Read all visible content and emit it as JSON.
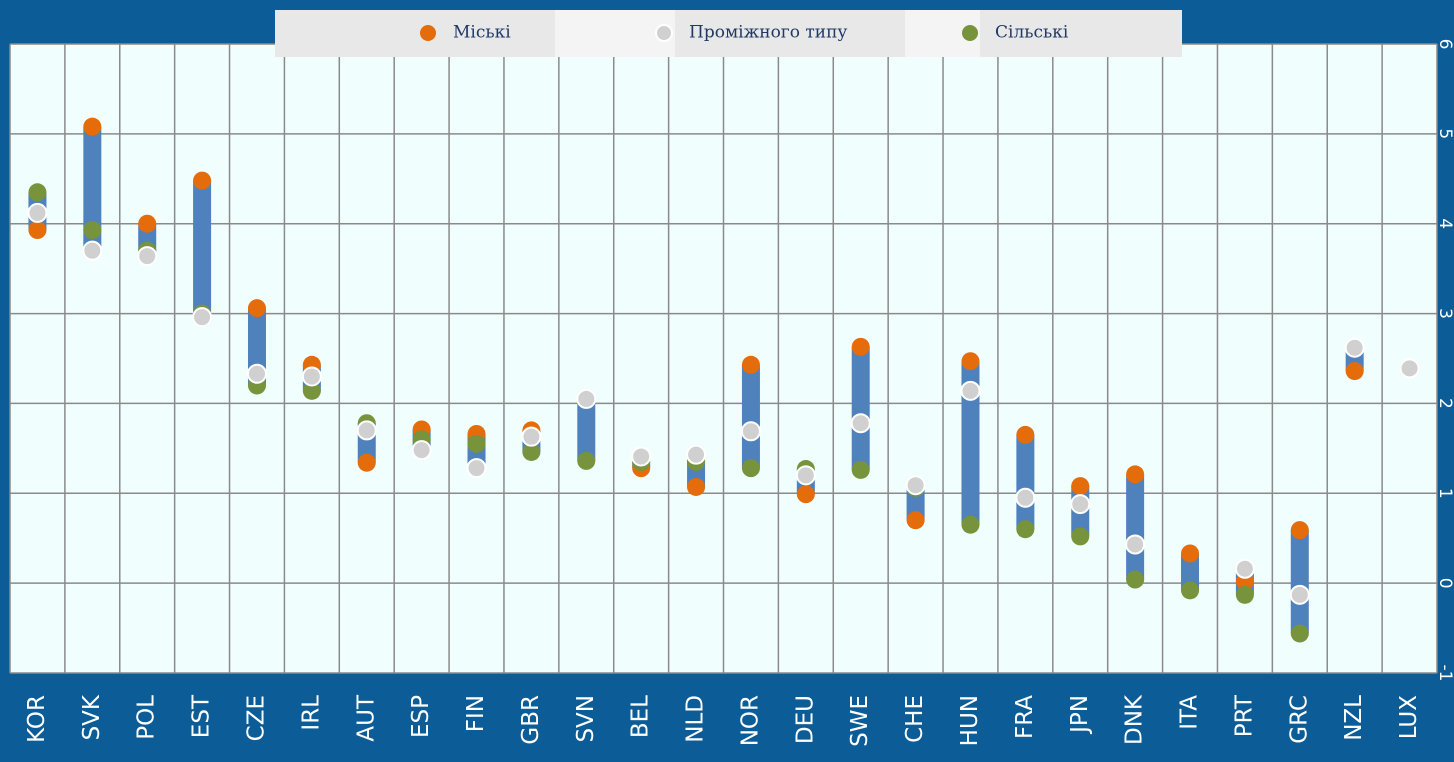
{
  "chart_data": {
    "type": "dot-range",
    "categories": [
      "KOR",
      "SVK",
      "POL",
      "EST",
      "CZE",
      "IRL",
      "AUT",
      "ESP",
      "FIN",
      "GBR",
      "SVN",
      "BEL",
      "NLD",
      "NOR",
      "DEU",
      "SWE",
      "CHE",
      "HUN",
      "FRA",
      "JPN",
      "DNK",
      "ITA",
      "PRT",
      "GRC",
      "NZL",
      "LUX"
    ],
    "series": [
      {
        "name": "Міські",
        "color": "#e46c0a",
        "values": [
          3.93,
          5.08,
          4.0,
          4.48,
          3.06,
          2.43,
          1.34,
          1.71,
          1.66,
          1.7,
          null,
          1.28,
          1.07,
          2.43,
          0.99,
          2.63,
          0.7,
          2.47,
          1.65,
          1.08,
          1.21,
          0.33,
          0.02,
          0.59,
          2.36,
          null
        ]
      },
      {
        "name": "Проміжного типу",
        "color": "#d0d0d0",
        "values": [
          4.12,
          3.7,
          3.64,
          2.96,
          2.33,
          2.3,
          1.7,
          1.48,
          1.28,
          1.63,
          2.05,
          1.41,
          1.43,
          1.69,
          1.2,
          1.78,
          1.09,
          2.14,
          0.95,
          0.88,
          0.43,
          null,
          0.16,
          -0.13,
          2.62,
          2.39
        ]
      },
      {
        "name": "Сільські",
        "color": "#77933c",
        "values": [
          4.35,
          3.93,
          3.7,
          3.0,
          2.2,
          2.14,
          1.78,
          1.6,
          1.55,
          1.46,
          1.36,
          1.35,
          1.35,
          1.28,
          1.27,
          1.26,
          1.06,
          0.65,
          0.6,
          0.52,
          0.04,
          -0.08,
          -0.13,
          -0.56,
          null,
          null
        ]
      }
    ],
    "range_color": "#4f81bd",
    "ylim": [
      -1,
      6
    ],
    "yticks": [
      -1,
      0,
      1,
      2,
      3,
      4,
      5,
      6
    ],
    "grid": true
  }
}
